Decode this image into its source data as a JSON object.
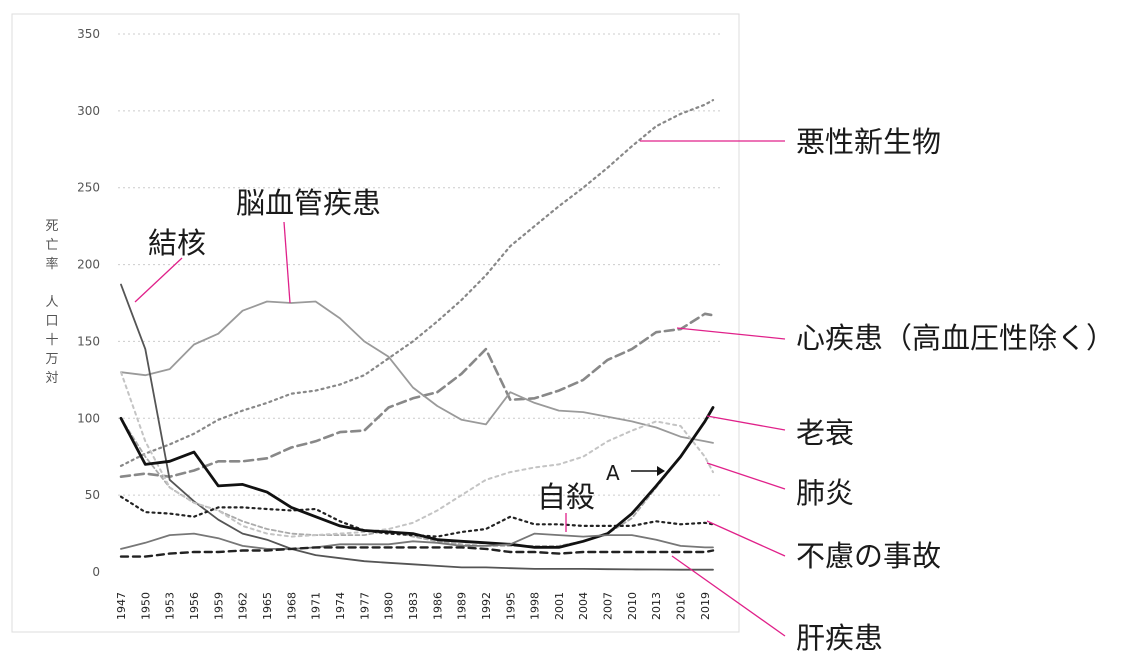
{
  "chart_data": {
    "type": "line",
    "ylabel_lines": [
      "死",
      "亡",
      "率",
      "",
      "人",
      "口",
      "十",
      "万",
      "対"
    ],
    "ylim": [
      0,
      350
    ],
    "yticks": [
      0,
      50,
      100,
      150,
      200,
      250,
      300,
      350
    ],
    "x": [
      1947,
      1950,
      1953,
      1956,
      1959,
      1962,
      1965,
      1968,
      1971,
      1974,
      1977,
      1980,
      1983,
      1986,
      1989,
      1992,
      1995,
      1998,
      2001,
      2004,
      2007,
      2010,
      2013,
      2016,
      2019,
      2020
    ],
    "xticks": [
      1947,
      1950,
      1953,
      1956,
      1959,
      1962,
      1965,
      1968,
      1971,
      1974,
      1977,
      1980,
      1983,
      1986,
      1989,
      1992,
      1995,
      1998,
      2001,
      2004,
      2007,
      2010,
      2013,
      2016,
      2019
    ],
    "grid": true,
    "legend": "none",
    "series": [
      {
        "name": "悪性新生物",
        "color": "#888888",
        "width": 2.2,
        "dash": "2 4",
        "values": [
          69,
          77,
          83,
          90,
          99,
          105,
          110,
          116,
          118,
          122,
          128,
          139,
          150,
          163,
          177,
          193,
          212,
          225,
          238,
          250,
          263,
          277,
          290,
          298,
          304,
          307
        ]
      },
      {
        "name": "心疾患（高血圧性除く）",
        "color": "#888888",
        "width": 2.6,
        "dash": "9 5",
        "values": [
          62,
          64,
          62,
          66,
          72,
          72,
          74,
          81,
          85,
          91,
          92,
          107,
          113,
          117,
          129,
          145,
          112,
          113,
          118,
          125,
          138,
          145,
          156,
          158,
          168,
          167
        ]
      },
      {
        "name": "脳血管疾患",
        "color": "#9a9a9a",
        "width": 1.8,
        "dash": "",
        "values": [
          130,
          128,
          132,
          148,
          155,
          170,
          176,
          175,
          176,
          165,
          150,
          140,
          120,
          108,
          99,
          96,
          117,
          110,
          105,
          104,
          101,
          98,
          94,
          88,
          85,
          84
        ]
      },
      {
        "name": "結核",
        "color": "#555555",
        "width": 1.8,
        "dash": "",
        "values": [
          187,
          145,
          60,
          46,
          34,
          25,
          21,
          15,
          11,
          9,
          7,
          6,
          5,
          4,
          3,
          3,
          2.5,
          2,
          2,
          2,
          1.8,
          1.7,
          1.6,
          1.5,
          1.5,
          1.5
        ]
      },
      {
        "name": "老衰",
        "color": "#aaaaaa",
        "width": 1.8,
        "dash": "4 3",
        "values": [
          100,
          75,
          55,
          45,
          40,
          33,
          28,
          25,
          24,
          24,
          24,
          27,
          23,
          20,
          18,
          17,
          17,
          17,
          17,
          20,
          25,
          35,
          55,
          75,
          98,
          107
        ]
      },
      {
        "name": "肺炎",
        "color": "#c4c4c4",
        "width": 2.0,
        "dash": "3 4",
        "values": [
          130,
          85,
          55,
          45,
          40,
          30,
          25,
          23,
          24,
          25,
          26,
          28,
          32,
          40,
          50,
          60,
          65,
          68,
          70,
          75,
          85,
          92,
          98,
          95,
          75,
          65
        ]
      },
      {
        "name": "不慮の事故",
        "color": "#222222",
        "width": 2.2,
        "dash": "2 4",
        "values": [
          49,
          39,
          38,
          36,
          42,
          42,
          41,
          40,
          41,
          33,
          27,
          25,
          24,
          23,
          26,
          28,
          36,
          31,
          31,
          30,
          30,
          30,
          33,
          31,
          32,
          31
        ]
      },
      {
        "name": "A",
        "color": "#111111",
        "width": 2.8,
        "dash": "",
        "values": [
          100,
          70,
          72,
          78,
          56,
          57,
          52,
          42,
          36,
          30,
          27,
          26,
          25,
          21,
          20,
          19,
          18,
          16,
          16,
          20,
          25,
          38,
          56,
          75,
          98,
          107
        ]
      },
      {
        "name": "自殺",
        "color": "#777777",
        "width": 1.8,
        "dash": "",
        "values": [
          15,
          19,
          24,
          25,
          22,
          17,
          15,
          15,
          16,
          18,
          18,
          18,
          20,
          19,
          17,
          17,
          18,
          25,
          24,
          23,
          24,
          24,
          21,
          17,
          16,
          16
        ]
      },
      {
        "name": "肝疾患",
        "color": "#222222",
        "width": 2.4,
        "dash": "7 5",
        "values": [
          10,
          10,
          12,
          13,
          13,
          14,
          14,
          15,
          16,
          16,
          16,
          16,
          16,
          16,
          16,
          15,
          13,
          13,
          12,
          13,
          13,
          13,
          13,
          13,
          13,
          14
        ]
      }
    ],
    "annotations": [
      {
        "text": "悪性新生物"
      },
      {
        "text": "脳血管疾患"
      },
      {
        "text": "結核"
      },
      {
        "text": "心疾患（高血圧性除く）"
      },
      {
        "text": "老衰"
      },
      {
        "text": "肺炎"
      },
      {
        "text": "不慮の事故"
      },
      {
        "text": "自殺"
      },
      {
        "text": "肝疾患"
      },
      {
        "text": "A"
      }
    ],
    "leader_color": "#e0218a"
  }
}
